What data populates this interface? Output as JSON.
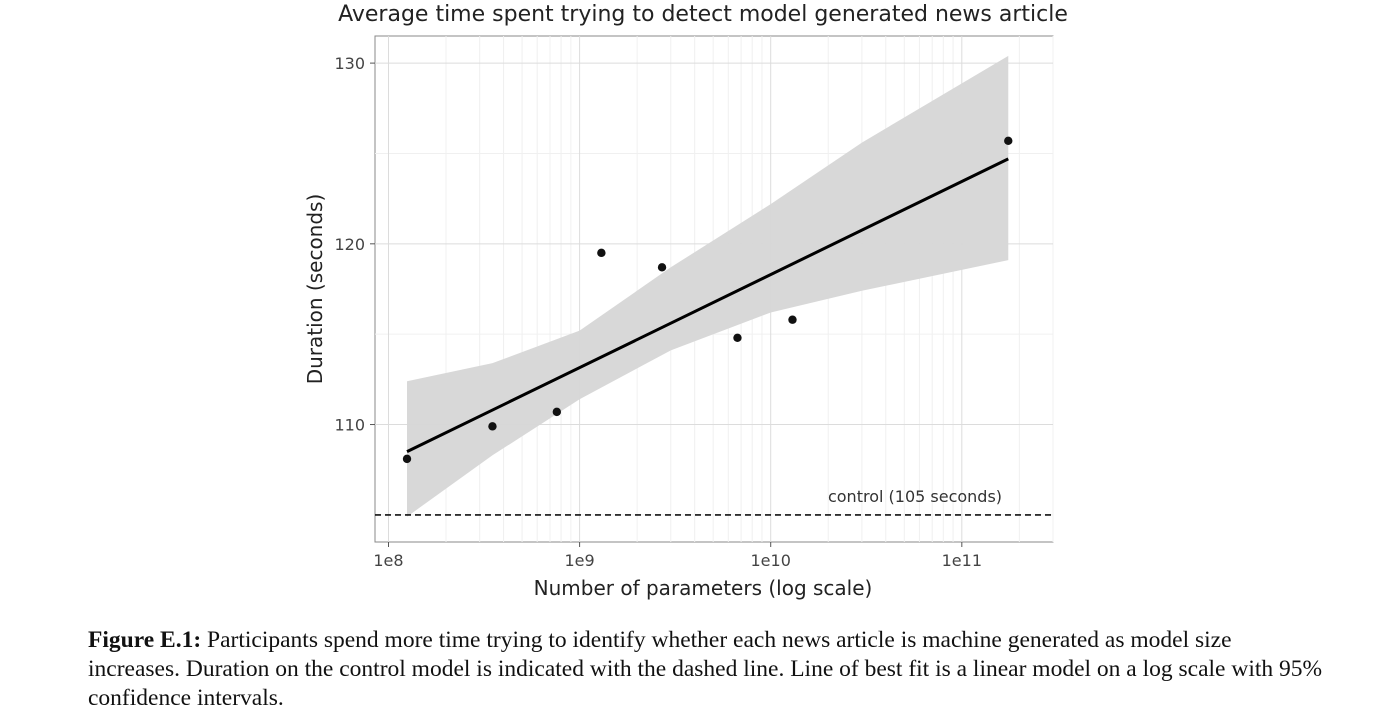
{
  "chart_data": {
    "type": "scatter",
    "title": "Average time spent trying to detect model generated news article",
    "xlabel": "Number of parameters (log scale)",
    "ylabel": "Duration (seconds)",
    "xscale": "log",
    "xlim": [
      85000000.0,
      300000000000.0
    ],
    "ylim": [
      103.5,
      131.5
    ],
    "xticks": [
      {
        "value": 100000000.0,
        "label": "1e8"
      },
      {
        "value": 1000000000.0,
        "label": "1e9"
      },
      {
        "value": 10000000000.0,
        "label": "1e10"
      },
      {
        "value": 100000000000.0,
        "label": "1e11"
      }
    ],
    "yticks": [
      {
        "value": 110,
        "label": "110"
      },
      {
        "value": 120,
        "label": "120"
      },
      {
        "value": 130,
        "label": "130"
      }
    ],
    "grid": true,
    "points": [
      {
        "x": 125000000.0,
        "y": 108.1
      },
      {
        "x": 350000000.0,
        "y": 109.9
      },
      {
        "x": 760000000.0,
        "y": 110.7
      },
      {
        "x": 1300000000.0,
        "y": 119.5
      },
      {
        "x": 2700000000.0,
        "y": 118.7
      },
      {
        "x": 6700000000.0,
        "y": 114.8
      },
      {
        "x": 13000000000.0,
        "y": 115.8
      },
      {
        "x": 175000000000.0,
        "y": 125.7
      }
    ],
    "fit_line": [
      {
        "x": 125000000.0,
        "y": 108.5
      },
      {
        "x": 175000000000.0,
        "y": 124.7
      }
    ],
    "confidence_band": [
      {
        "x": 125000000.0,
        "low": 104.9,
        "high": 112.4
      },
      {
        "x": 350000000.0,
        "low": 108.3,
        "high": 113.4
      },
      {
        "x": 1000000000.0,
        "low": 111.4,
        "high": 115.2
      },
      {
        "x": 3000000000.0,
        "low": 114.1,
        "high": 118.7
      },
      {
        "x": 10000000000.0,
        "low": 116.2,
        "high": 122.2
      },
      {
        "x": 30000000000.0,
        "low": 117.4,
        "high": 125.6
      },
      {
        "x": 175000000000.0,
        "low": 119.1,
        "high": 130.4
      }
    ],
    "control": {
      "y": 105,
      "label": "control (105 seconds)"
    }
  },
  "caption": {
    "label": "Figure E.1:",
    "text": "Participants spend more time trying to identify whether each news article is machine generated as model size increases. Duration on the control model is indicated with the dashed line. Line of best fit is a linear model on a log scale with 95% confidence intervals."
  }
}
